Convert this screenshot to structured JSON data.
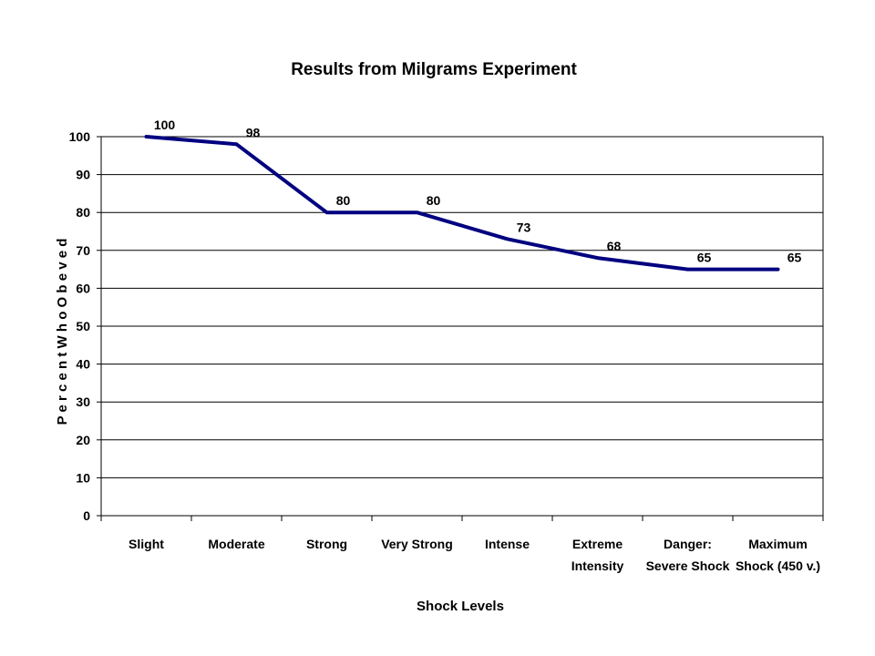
{
  "chart_data": {
    "type": "line",
    "title": "Results from Milgrams Experiment",
    "xlabel": "Shock Levels",
    "ylabel": "P e r c e n t   W h o   O b e v e d",
    "categories": [
      [
        "Slight"
      ],
      [
        "Moderate"
      ],
      [
        "Strong"
      ],
      [
        "Very Strong"
      ],
      [
        "Intense"
      ],
      [
        "Extreme",
        "Intensity"
      ],
      [
        "Danger:",
        "Severe Shock"
      ],
      [
        "Maximum",
        "Shock (450 v.)"
      ]
    ],
    "values": [
      100,
      98,
      80,
      80,
      73,
      68,
      65,
      65
    ],
    "y_ticks": [
      0,
      10,
      20,
      30,
      40,
      50,
      60,
      70,
      80,
      90,
      100
    ],
    "ylim": [
      0,
      100
    ],
    "grid": true,
    "legend": "none",
    "line_color": "#000080"
  }
}
